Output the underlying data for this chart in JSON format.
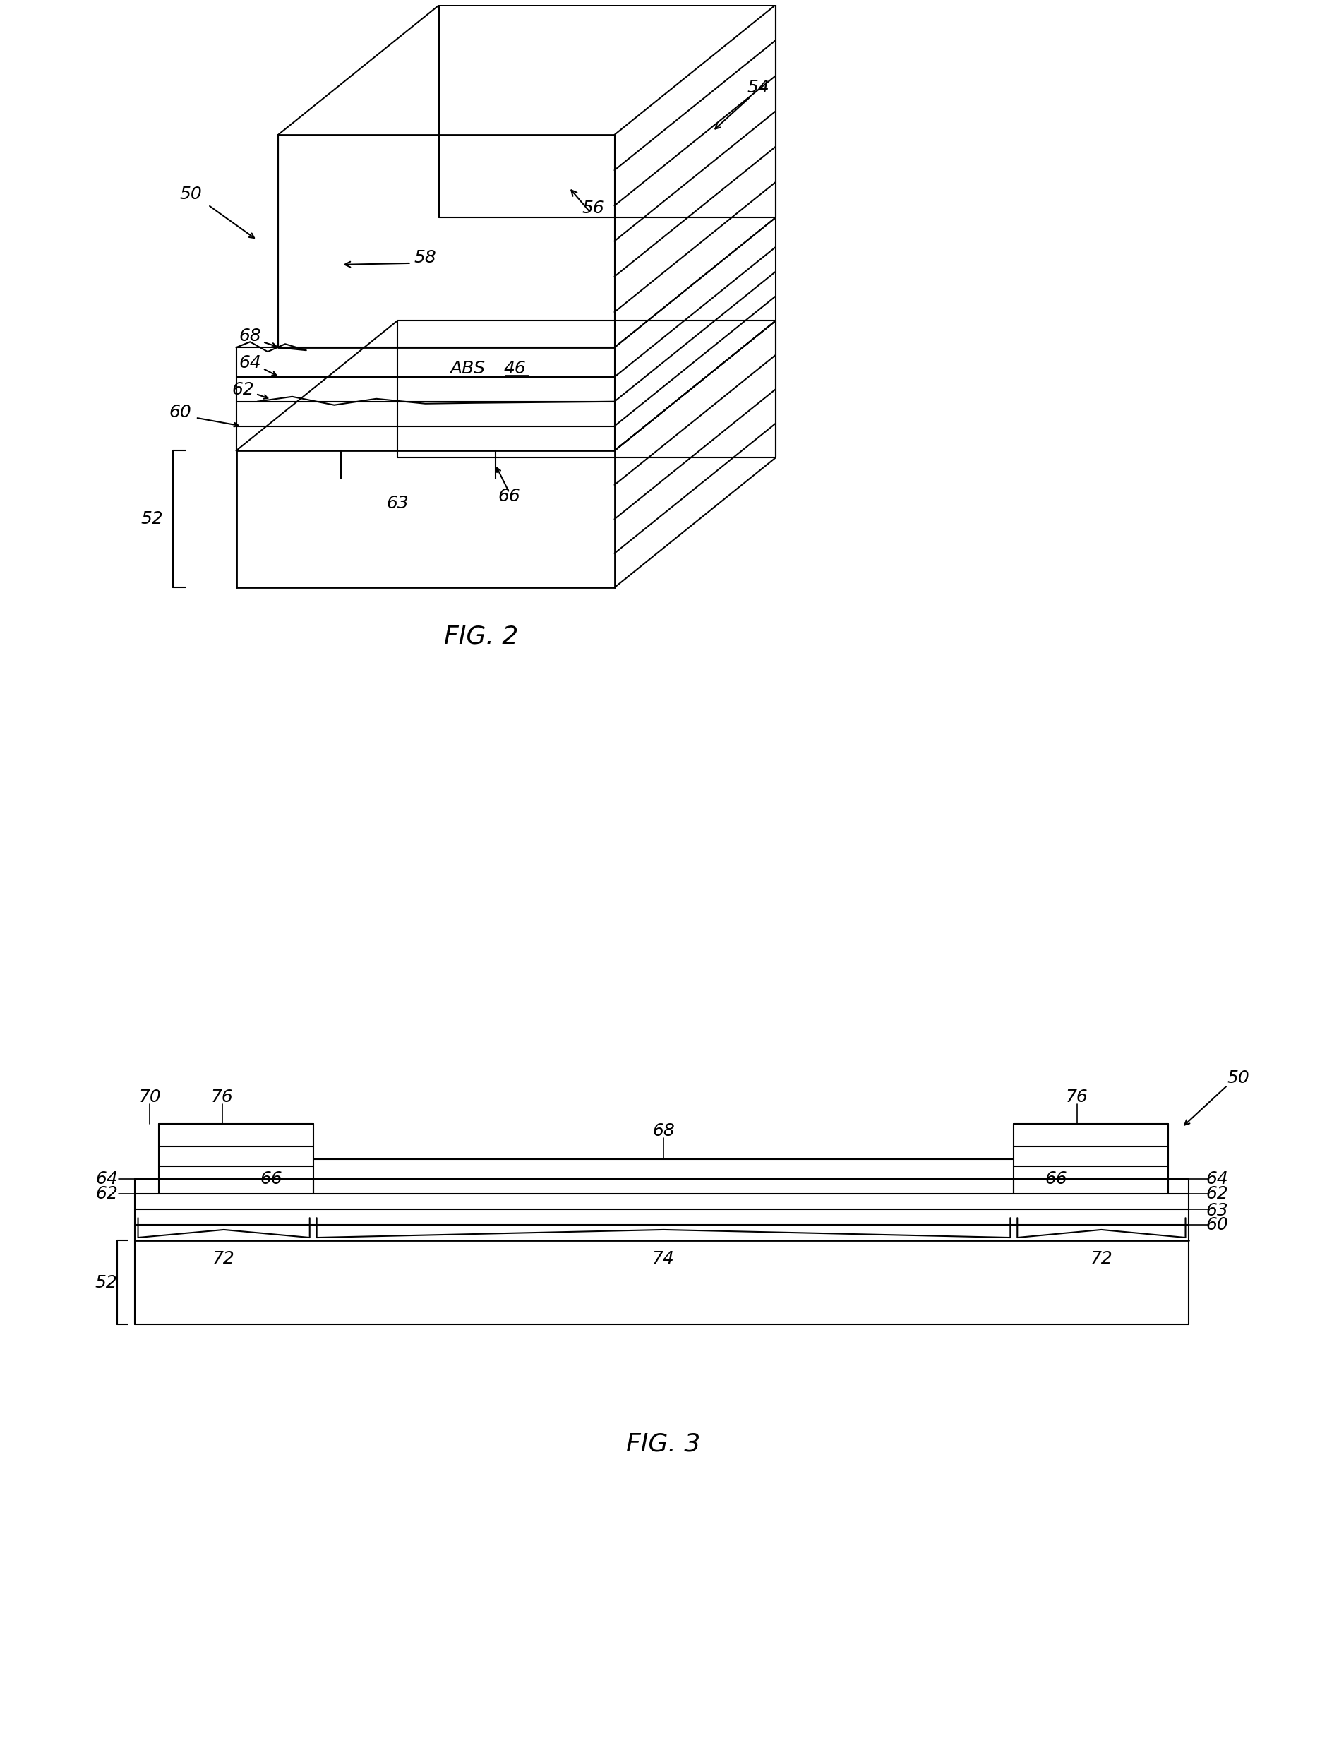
{
  "fig_width": 18.8,
  "fig_height": 24.69,
  "bg_color": "#ffffff",
  "line_color": "#000000",
  "fig2_title": "FIG. 2",
  "fig3_title": "FIG. 3"
}
